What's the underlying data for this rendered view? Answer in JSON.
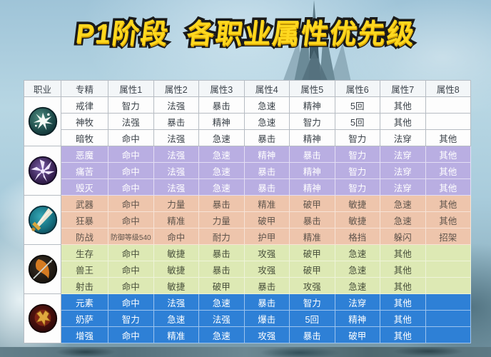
{
  "title": "P1阶段  各职业属性优先级",
  "colors": {
    "title_yellow": "#ffd81f",
    "title_outline": "#1a1a1a",
    "header_bg": "#f3f6f8",
    "priest_bg": "#fdfdfd",
    "warlock_bg": "#b9aee2",
    "warrior_bg": "#eec5ac",
    "hunter_bg": "#dde9b4",
    "shaman_bg": "#2e80d6",
    "grid_border": "#b6bcc3"
  },
  "table": {
    "headers": [
      "职业",
      "专精",
      "属性1",
      "属性2",
      "属性3",
      "属性4",
      "属性5",
      "属性6",
      "属性7",
      "属性8"
    ],
    "groups": [
      {
        "key": "priest",
        "icon": "priest-icon",
        "theme": {
          "bg": "#fdfdfd",
          "text": "#3b4249",
          "border": "#b6bcc3"
        },
        "rows": [
          {
            "spec": "戒律",
            "attrs": [
              "智力",
              "法强",
              "暴击",
              "急速",
              "精神",
              "5回",
              "其他",
              ""
            ]
          },
          {
            "spec": "神牧",
            "attrs": [
              "法强",
              "暴击",
              "精神",
              "急速",
              "智力",
              "5回",
              "其他",
              ""
            ]
          },
          {
            "spec": "暗牧",
            "attrs": [
              "命中",
              "法强",
              "急速",
              "暴击",
              "精神",
              "智力",
              "法穿",
              "其他"
            ]
          }
        ]
      },
      {
        "key": "warlock",
        "icon": "warlock-icon",
        "theme": {
          "bg": "#b9aee2",
          "text": "#ffffff",
          "border": "#e3def4"
        },
        "rows": [
          {
            "spec": "恶魔",
            "attrs": [
              "命中",
              "法强",
              "急速",
              "精神",
              "暴击",
              "智力",
              "法穿",
              "其他"
            ]
          },
          {
            "spec": "痛苦",
            "attrs": [
              "命中",
              "法强",
              "急速",
              "暴击",
              "精神",
              "智力",
              "法穿",
              "其他"
            ]
          },
          {
            "spec": "毁灭",
            "attrs": [
              "命中",
              "法强",
              "急速",
              "暴击",
              "精神",
              "智力",
              "法穿",
              "其他"
            ]
          }
        ]
      },
      {
        "key": "warrior",
        "icon": "warrior-icon",
        "theme": {
          "bg": "#eec5ac",
          "text": "#5f544b",
          "border": "#f7e3d6"
        },
        "rows": [
          {
            "spec": "武器",
            "attrs": [
              "命中",
              "力量",
              "暴击",
              "精准",
              "破甲",
              "敏捷",
              "急速",
              "其他"
            ]
          },
          {
            "spec": "狂暴",
            "attrs": [
              "命中",
              "精准",
              "力量",
              "破甲",
              "暴击",
              "敏捷",
              "急速",
              "其他"
            ]
          },
          {
            "spec": "防战",
            "attrs": [
              "防御等级540",
              "命中",
              "耐力",
              "护甲",
              "精准",
              "格挡",
              "躲闪",
              "招架"
            ]
          }
        ]
      },
      {
        "key": "hunter",
        "icon": "hunter-icon",
        "theme": {
          "bg": "#dde9b4",
          "text": "#49503b",
          "border": "#eef3d9"
        },
        "rows": [
          {
            "spec": "生存",
            "attrs": [
              "命中",
              "敏捷",
              "暴击",
              "攻强",
              "破甲",
              "急速",
              "其他",
              ""
            ]
          },
          {
            "spec": "兽王",
            "attrs": [
              "命中",
              "敏捷",
              "暴击",
              "攻强",
              "破甲",
              "急速",
              "其他",
              ""
            ]
          },
          {
            "spec": "射击",
            "attrs": [
              "命中",
              "敏捷",
              "破甲",
              "暴击",
              "攻强",
              "急速",
              "其他",
              ""
            ]
          }
        ]
      },
      {
        "key": "shaman",
        "icon": "shaman-icon",
        "theme": {
          "bg": "#2e80d6",
          "text": "#ffffff",
          "border": "#9cc3ee"
        },
        "rows": [
          {
            "spec": "元素",
            "attrs": [
              "命中",
              "法强",
              "急速",
              "暴击",
              "智力",
              "法穿",
              "其他",
              ""
            ]
          },
          {
            "spec": "奶萨",
            "attrs": [
              "智力",
              "急速",
              "法强",
              "爆击",
              "5回",
              "精神",
              "其他",
              ""
            ]
          },
          {
            "spec": "增强",
            "attrs": [
              "命中",
              "精准",
              "急速",
              "攻强",
              "暴击",
              "破甲",
              "其他",
              ""
            ]
          }
        ]
      }
    ]
  },
  "chart_data": {
    "type": "table",
    "title": "P1阶段 各职业属性优先级",
    "columns": [
      "职业",
      "专精",
      "属性1",
      "属性2",
      "属性3",
      "属性4",
      "属性5",
      "属性6",
      "属性7",
      "属性8"
    ],
    "rows": [
      [
        "priest-icon",
        "戒律",
        "智力",
        "法强",
        "暴击",
        "急速",
        "精神",
        "5回",
        "其他",
        ""
      ],
      [
        "priest-icon",
        "神牧",
        "法强",
        "暴击",
        "精神",
        "急速",
        "智力",
        "5回",
        "其他",
        ""
      ],
      [
        "priest-icon",
        "暗牧",
        "命中",
        "法强",
        "急速",
        "暴击",
        "精神",
        "智力",
        "法穿",
        "其他"
      ],
      [
        "warlock-icon",
        "恶魔",
        "命中",
        "法强",
        "急速",
        "精神",
        "暴击",
        "智力",
        "法穿",
        "其他"
      ],
      [
        "warlock-icon",
        "痛苦",
        "命中",
        "法强",
        "急速",
        "暴击",
        "精神",
        "智力",
        "法穿",
        "其他"
      ],
      [
        "warlock-icon",
        "毁灭",
        "命中",
        "法强",
        "急速",
        "暴击",
        "精神",
        "智力",
        "法穿",
        "其他"
      ],
      [
        "warrior-icon",
        "武器",
        "命中",
        "力量",
        "暴击",
        "精准",
        "破甲",
        "敏捷",
        "急速",
        "其他"
      ],
      [
        "warrior-icon",
        "狂暴",
        "命中",
        "精准",
        "力量",
        "破甲",
        "暴击",
        "敏捷",
        "急速",
        "其他"
      ],
      [
        "warrior-icon",
        "防战",
        "防御等级540",
        "命中",
        "耐力",
        "护甲",
        "精准",
        "格挡",
        "躲闪",
        "招架"
      ],
      [
        "hunter-icon",
        "生存",
        "命中",
        "敏捷",
        "暴击",
        "攻强",
        "破甲",
        "急速",
        "其他",
        ""
      ],
      [
        "hunter-icon",
        "兽王",
        "命中",
        "敏捷",
        "暴击",
        "攻强",
        "破甲",
        "急速",
        "其他",
        ""
      ],
      [
        "hunter-icon",
        "射击",
        "命中",
        "敏捷",
        "破甲",
        "暴击",
        "攻强",
        "急速",
        "其他",
        ""
      ],
      [
        "shaman-icon",
        "元素",
        "命中",
        "法强",
        "急速",
        "暴击",
        "智力",
        "法穿",
        "其他",
        ""
      ],
      [
        "shaman-icon",
        "奶萨",
        "智力",
        "急速",
        "法强",
        "爆击",
        "5回",
        "精神",
        "其他",
        ""
      ],
      [
        "shaman-icon",
        "增强",
        "命中",
        "精准",
        "急速",
        "攻强",
        "暴击",
        "破甲",
        "其他",
        ""
      ]
    ]
  }
}
